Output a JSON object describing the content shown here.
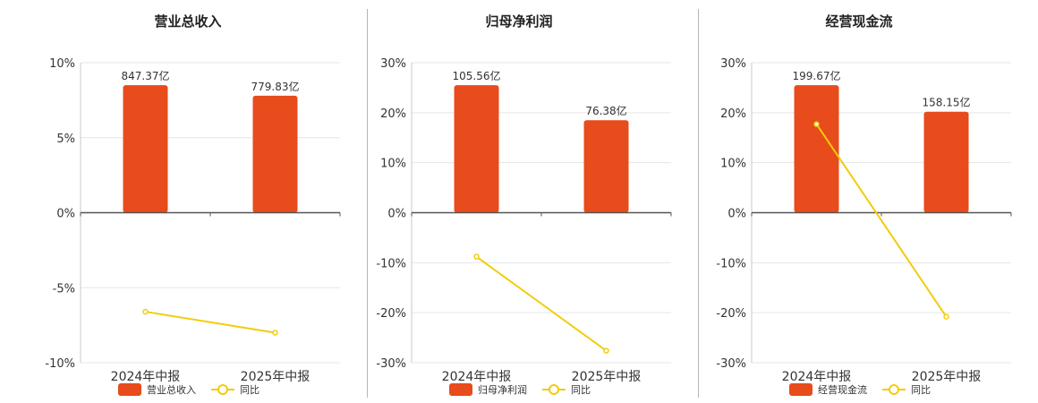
{
  "chart_data": [
    {
      "type": "bar+line",
      "title": "营业总收入",
      "categories": [
        "2024年中报",
        "2025年中报"
      ],
      "bar_series": {
        "name": "营业总收入",
        "values": [
          847.37,
          779.83
        ],
        "labels": [
          "847.37亿",
          "779.83亿"
        ],
        "percent_equivalent": [
          8.5,
          7.8
        ]
      },
      "line_series": {
        "name": "同比",
        "values": [
          -6.6,
          -8.0
        ]
      },
      "yticks": [
        "10%",
        "5%",
        "0%",
        "-5%",
        "-10%"
      ],
      "ylim": [
        -10,
        10
      ]
    },
    {
      "type": "bar+line",
      "title": "归母净利润",
      "categories": [
        "2024年中报",
        "2025年中报"
      ],
      "bar_series": {
        "name": "归母净利润",
        "values": [
          105.56,
          76.38
        ],
        "labels": [
          "105.56亿",
          "76.38亿"
        ],
        "percent_equivalent": [
          25.5,
          18.5
        ]
      },
      "line_series": {
        "name": "同比",
        "values": [
          -8.8,
          -27.6
        ]
      },
      "yticks": [
        "30%",
        "20%",
        "10%",
        "0%",
        "-10%",
        "-20%",
        "-30%"
      ],
      "ylim": [
        -30,
        30
      ]
    },
    {
      "type": "bar+line",
      "title": "经营现金流",
      "categories": [
        "2024年中报",
        "2025年中报"
      ],
      "bar_series": {
        "name": "经营现金流",
        "values": [
          199.67,
          158.15
        ],
        "labels": [
          "199.67亿",
          "158.15亿"
        ],
        "percent_equivalent": [
          25.5,
          20.2
        ]
      },
      "line_series": {
        "name": "同比",
        "values": [
          17.7,
          -20.8
        ]
      },
      "yticks": [
        "30%",
        "20%",
        "10%",
        "0%",
        "-10%",
        "-20%",
        "-30%"
      ],
      "ylim": [
        -30,
        30
      ]
    }
  ],
  "colors": {
    "bar": "#E84B1C",
    "line": "#F2CC0C",
    "axis": "#555555",
    "grid": "#e6e6e6",
    "text": "#333333"
  }
}
